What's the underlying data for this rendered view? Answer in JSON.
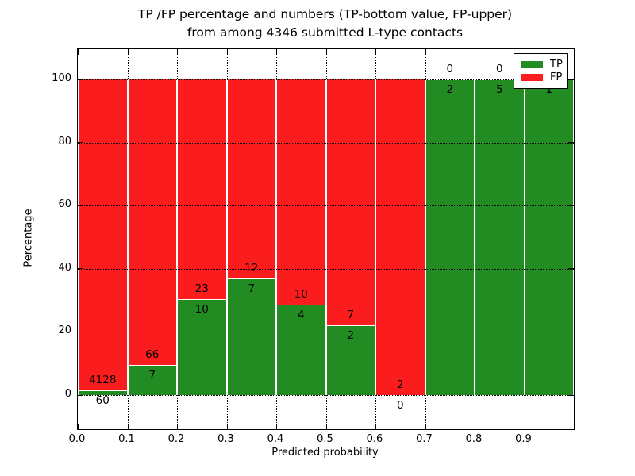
{
  "chart_data": {
    "type": "bar",
    "stacked": true,
    "title_line1": "TP /FP percentage and numbers (TP-bottom value, FP-upper)",
    "title_line2": "from among 4346 submitted L-type contacts",
    "xlabel": "Predicted probability",
    "ylabel": "Percentage",
    "total_contacts": 4346,
    "bin_width": 0.1,
    "bins": [
      {
        "x0": 0.0,
        "x1": 0.1,
        "tp": 60,
        "fp": 4128,
        "tp_pct": 1.43
      },
      {
        "x0": 0.1,
        "x1": 0.2,
        "tp": 7,
        "fp": 66,
        "tp_pct": 9.59
      },
      {
        "x0": 0.2,
        "x1": 0.3,
        "tp": 10,
        "fp": 23,
        "tp_pct": 30.3
      },
      {
        "x0": 0.3,
        "x1": 0.4,
        "tp": 7,
        "fp": 12,
        "tp_pct": 36.84
      },
      {
        "x0": 0.4,
        "x1": 0.5,
        "tp": 4,
        "fp": 10,
        "tp_pct": 28.57
      },
      {
        "x0": 0.5,
        "x1": 0.6,
        "tp": 2,
        "fp": 7,
        "tp_pct": 22.22
      },
      {
        "x0": 0.6,
        "x1": 0.7,
        "tp": 0,
        "fp": 2,
        "tp_pct": 0.0
      },
      {
        "x0": 0.7,
        "x1": 0.8,
        "tp": 2,
        "fp": 0,
        "tp_pct": 100.0
      },
      {
        "x0": 0.8,
        "x1": 0.9,
        "tp": 5,
        "fp": 0,
        "tp_pct": 100.0
      },
      {
        "x0": 0.9,
        "x1": 1.0,
        "tp": 1,
        "fp": 0,
        "tp_pct": 100.0
      }
    ],
    "xtick_labels": [
      "0.0",
      "0.1",
      "0.2",
      "0.3",
      "0.4",
      "0.5",
      "0.6",
      "0.7",
      "0.8",
      "0.9"
    ],
    "ytick_labels": [
      "0",
      "20",
      "40",
      "60",
      "80",
      "100"
    ],
    "yticks": [
      0,
      20,
      40,
      60,
      80,
      100
    ],
    "xlim": [
      0.0,
      1.0
    ],
    "ylim": [
      -10.8,
      109.5
    ],
    "grid": "dotted",
    "colors": {
      "tp": "#228b22",
      "fp": "#fb1d1d",
      "grid": "#000000",
      "label": "#000000"
    },
    "legend": {
      "position": "upper right",
      "entries": [
        {
          "label": "TP",
          "color": "#228b22"
        },
        {
          "label": "FP",
          "color": "#fb1d1d"
        }
      ]
    },
    "annotation_note": "TP count drawn just below each green-segment top, FP count just above it"
  }
}
